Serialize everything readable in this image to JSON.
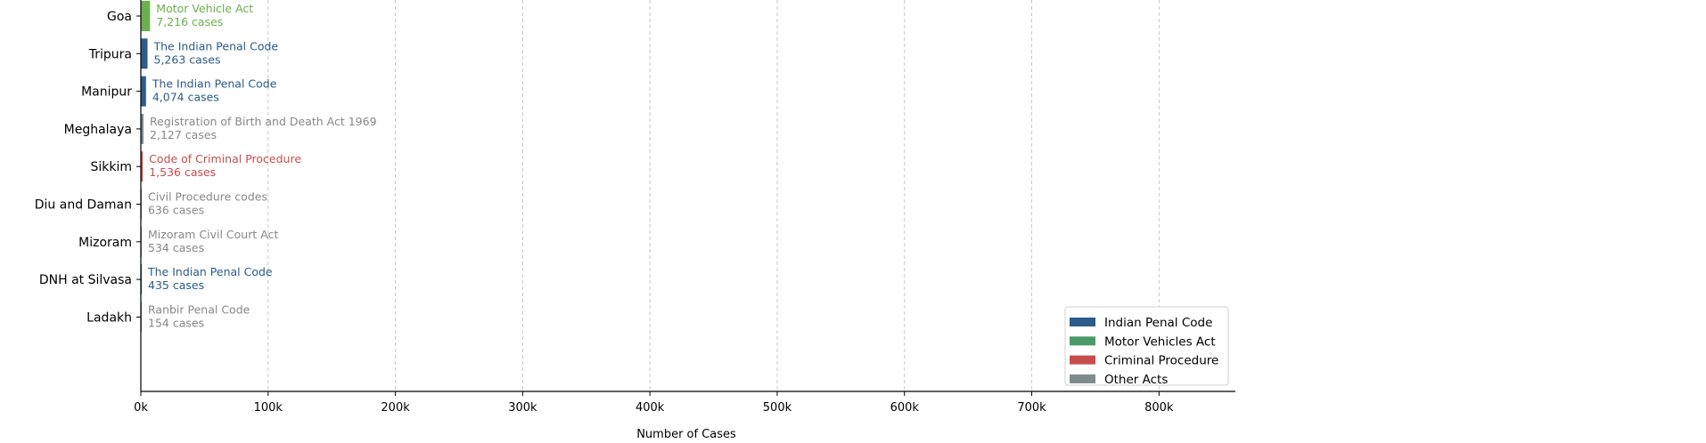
{
  "chart_data": {
    "type": "bar",
    "orientation": "horizontal",
    "title": "",
    "xlabel": "Number of Cases",
    "ylabel": "",
    "xlim": [
      0,
      860000
    ],
    "xticks": [
      0,
      100000,
      200000,
      300000,
      400000,
      500000,
      600000,
      700000,
      800000
    ],
    "xtick_labels": [
      "0k",
      "100k",
      "200k",
      "300k",
      "400k",
      "500k",
      "600k",
      "700k",
      "800k"
    ],
    "grid": "x, dashed",
    "legend_position": "lower-right",
    "categories": [
      "Goa",
      "Tripura",
      "Manipur",
      "Meghalaya",
      "Sikkim",
      "Diu and Daman",
      "Mizoram",
      "DNH at Silvasa",
      "Ladakh"
    ],
    "values": [
      7216,
      5263,
      4074,
      2127,
      1536,
      636,
      534,
      435,
      154
    ],
    "acts": [
      "Motor Vehicle Act",
      "The Indian Penal Code",
      "The Indian Penal Code",
      "Registration of Birth and Death Act 1969",
      "Code of Criminal Procedure",
      "Civil Procedure codes",
      "Mizoram Civil Court Act",
      "The Indian Penal Code",
      "Ranbir Penal Code"
    ],
    "case_labels": [
      "7,216 cases",
      "5,263 cases",
      "4,074 cases",
      "2,127 cases",
      "1,536 cases",
      "636 cases",
      "534 cases",
      "435 cases",
      "154 cases"
    ],
    "bar_colors": [
      "#6ab04c",
      "#2b5c8a",
      "#2b5c8a",
      "#7f8c8d",
      "#c94c4c",
      "#7f8c8d",
      "#7f8c8d",
      "#2b5c8a",
      "#7f8c8d"
    ],
    "label_colors": [
      "#6ab04c",
      "#2b5c8a",
      "#2b5c8a",
      "#888888",
      "#c94c4c",
      "#888888",
      "#888888",
      "#2b5c8a",
      "#888888"
    ],
    "legend": [
      {
        "label": "Indian Penal Code",
        "color": "#2b5c8a"
      },
      {
        "label": "Motor Vehicles Act",
        "color": "#4a9a6a"
      },
      {
        "label": "Criminal Procedure",
        "color": "#c94c4c"
      },
      {
        "label": "Other Acts",
        "color": "#7f8c8d"
      }
    ]
  }
}
